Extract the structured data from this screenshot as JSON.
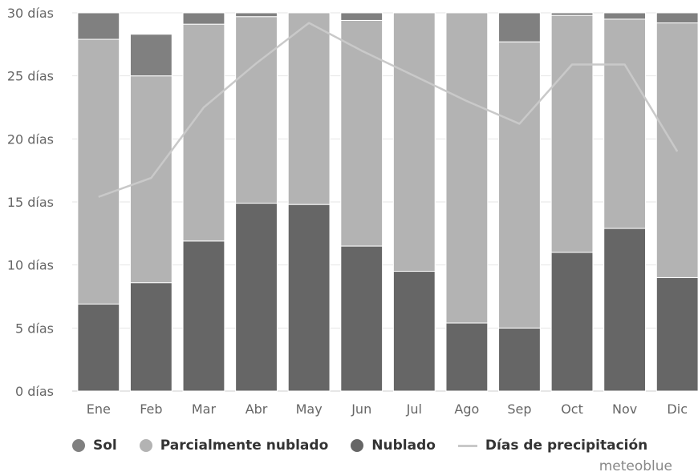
{
  "chart_data": {
    "type": "bar",
    "stacked": true,
    "categories": [
      "Ene",
      "Feb",
      "Mar",
      "Abr",
      "May",
      "Jun",
      "Jul",
      "Ago",
      "Sep",
      "Oct",
      "Nov",
      "Dic"
    ],
    "series": [
      {
        "name": "Nublado",
        "color": "#666666",
        "values": [
          6.9,
          8.6,
          11.9,
          14.9,
          14.8,
          11.5,
          9.5,
          5.4,
          5.0,
          11.0,
          12.9,
          9.0
        ]
      },
      {
        "name": "Parcialmente nublado",
        "color": "#b3b3b3",
        "values": [
          21.0,
          16.4,
          17.2,
          14.8,
          15.2,
          17.9,
          20.5,
          24.6,
          22.7,
          18.8,
          16.6,
          20.2
        ]
      },
      {
        "name": "Sol",
        "color": "#808080",
        "values": [
          2.1,
          3.3,
          0.9,
          0.3,
          0.0,
          0.6,
          0.0,
          0.0,
          2.3,
          0.2,
          0.5,
          0.8
        ]
      }
    ],
    "line_series": {
      "name": "Días de precipitación",
      "color": "#c9c9c9",
      "values": [
        15.4,
        16.9,
        22.5,
        26.0,
        29.2,
        27.0,
        25.0,
        23.0,
        21.2,
        25.9,
        25.9,
        19.0
      ]
    },
    "ylim": [
      0,
      30
    ],
    "yticks": [
      0,
      5,
      10,
      15,
      20,
      25,
      30
    ],
    "ytick_suffix": " días",
    "grid": true,
    "legend_position": "bottom-left",
    "credit": "meteoblue"
  }
}
